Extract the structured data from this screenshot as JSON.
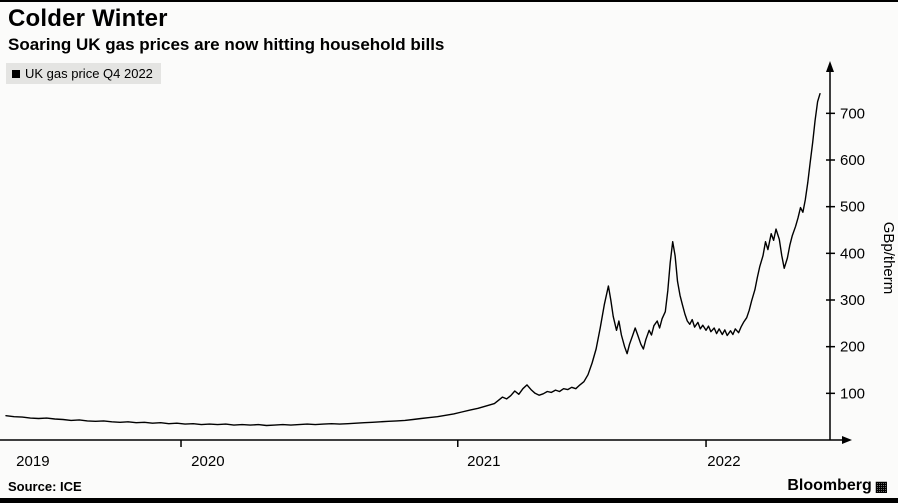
{
  "header": {
    "title": "Colder Winter",
    "subtitle": "Soaring UK gas prices are now hitting household bills"
  },
  "legend": {
    "label": "UK gas price Q4 2022",
    "swatch_color": "#000000"
  },
  "footer": {
    "source": "Source: ICE",
    "brand": "Bloomberg",
    "brand_icon": "▦"
  },
  "colors": {
    "background": "#fbfbfa",
    "axis": "#000000",
    "line": "#000000",
    "legend_bg": "#e4e4e2",
    "text": "#000000"
  },
  "chart_data": {
    "type": "line",
    "title": "Colder Winter",
    "subtitle": "Soaring UK gas prices are now hitting household bills",
    "legend_entries": [
      "UK gas price Q4 2022"
    ],
    "xlabel": "",
    "ylabel": "GBp/therm",
    "ylabel_side": "right",
    "ylim": [
      0,
      780
    ],
    "yticks": [
      100,
      200,
      300,
      400,
      500,
      600,
      700
    ],
    "grid": false,
    "legend_position": "top-left",
    "line_color": "#000000",
    "x_year_labels": [
      {
        "label": "2019",
        "x": 0.033
      },
      {
        "label": "2020",
        "x": 0.248
      },
      {
        "label": "2021",
        "x": 0.587
      },
      {
        "label": "2022",
        "x": 0.882
      }
    ],
    "x_axis_ticks": [
      0.215,
      0.555,
      0.86
    ],
    "points": [
      [
        0.0,
        52
      ],
      [
        0.01,
        50
      ],
      [
        0.02,
        49
      ],
      [
        0.03,
        47
      ],
      [
        0.04,
        46
      ],
      [
        0.05,
        47
      ],
      [
        0.06,
        45
      ],
      [
        0.07,
        44
      ],
      [
        0.08,
        42
      ],
      [
        0.09,
        43
      ],
      [
        0.1,
        41
      ],
      [
        0.11,
        40
      ],
      [
        0.12,
        41
      ],
      [
        0.13,
        39
      ],
      [
        0.14,
        38
      ],
      [
        0.15,
        39
      ],
      [
        0.16,
        37
      ],
      [
        0.17,
        38
      ],
      [
        0.18,
        36
      ],
      [
        0.19,
        37
      ],
      [
        0.2,
        35
      ],
      [
        0.21,
        36
      ],
      [
        0.22,
        34
      ],
      [
        0.23,
        35
      ],
      [
        0.24,
        33
      ],
      [
        0.25,
        34
      ],
      [
        0.26,
        33
      ],
      [
        0.27,
        34
      ],
      [
        0.28,
        32
      ],
      [
        0.29,
        33
      ],
      [
        0.3,
        32
      ],
      [
        0.31,
        33
      ],
      [
        0.32,
        31
      ],
      [
        0.33,
        32
      ],
      [
        0.34,
        33
      ],
      [
        0.35,
        32
      ],
      [
        0.36,
        33
      ],
      [
        0.37,
        34
      ],
      [
        0.38,
        33
      ],
      [
        0.39,
        34
      ],
      [
        0.4,
        35
      ],
      [
        0.41,
        34
      ],
      [
        0.42,
        35
      ],
      [
        0.43,
        36
      ],
      [
        0.44,
        37
      ],
      [
        0.45,
        38
      ],
      [
        0.46,
        39
      ],
      [
        0.47,
        40
      ],
      [
        0.48,
        41
      ],
      [
        0.49,
        42
      ],
      [
        0.5,
        44
      ],
      [
        0.51,
        46
      ],
      [
        0.52,
        48
      ],
      [
        0.53,
        50
      ],
      [
        0.54,
        53
      ],
      [
        0.55,
        56
      ],
      [
        0.56,
        60
      ],
      [
        0.57,
        64
      ],
      [
        0.58,
        68
      ],
      [
        0.59,
        73
      ],
      [
        0.6,
        78
      ],
      [
        0.605,
        85
      ],
      [
        0.61,
        92
      ],
      [
        0.615,
        88
      ],
      [
        0.62,
        95
      ],
      [
        0.625,
        105
      ],
      [
        0.63,
        98
      ],
      [
        0.635,
        110
      ],
      [
        0.64,
        118
      ],
      [
        0.645,
        108
      ],
      [
        0.65,
        100
      ],
      [
        0.655,
        96
      ],
      [
        0.66,
        99
      ],
      [
        0.665,
        104
      ],
      [
        0.67,
        102
      ],
      [
        0.675,
        107
      ],
      [
        0.68,
        104
      ],
      [
        0.685,
        110
      ],
      [
        0.69,
        108
      ],
      [
        0.695,
        113
      ],
      [
        0.7,
        110
      ],
      [
        0.705,
        118
      ],
      [
        0.71,
        125
      ],
      [
        0.715,
        140
      ],
      [
        0.72,
        165
      ],
      [
        0.725,
        195
      ],
      [
        0.73,
        240
      ],
      [
        0.735,
        290
      ],
      [
        0.74,
        330
      ],
      [
        0.743,
        300
      ],
      [
        0.746,
        265
      ],
      [
        0.75,
        235
      ],
      [
        0.753,
        255
      ],
      [
        0.756,
        225
      ],
      [
        0.76,
        200
      ],
      [
        0.763,
        185
      ],
      [
        0.766,
        205
      ],
      [
        0.77,
        225
      ],
      [
        0.773,
        240
      ],
      [
        0.776,
        225
      ],
      [
        0.78,
        205
      ],
      [
        0.783,
        195
      ],
      [
        0.786,
        215
      ],
      [
        0.79,
        235
      ],
      [
        0.793,
        225
      ],
      [
        0.796,
        245
      ],
      [
        0.8,
        255
      ],
      [
        0.803,
        240
      ],
      [
        0.806,
        260
      ],
      [
        0.81,
        275
      ],
      [
        0.813,
        320
      ],
      [
        0.816,
        380
      ],
      [
        0.819,
        425
      ],
      [
        0.822,
        395
      ],
      [
        0.825,
        340
      ],
      [
        0.828,
        310
      ],
      [
        0.831,
        290
      ],
      [
        0.834,
        270
      ],
      [
        0.837,
        255
      ],
      [
        0.84,
        248
      ],
      [
        0.843,
        258
      ],
      [
        0.846,
        242
      ],
      [
        0.85,
        252
      ],
      [
        0.853,
        238
      ],
      [
        0.856,
        246
      ],
      [
        0.86,
        235
      ],
      [
        0.863,
        244
      ],
      [
        0.866,
        232
      ],
      [
        0.87,
        240
      ],
      [
        0.873,
        228
      ],
      [
        0.876,
        238
      ],
      [
        0.88,
        226
      ],
      [
        0.883,
        236
      ],
      [
        0.886,
        224
      ],
      [
        0.89,
        234
      ],
      [
        0.893,
        226
      ],
      [
        0.896,
        238
      ],
      [
        0.9,
        230
      ],
      [
        0.903,
        242
      ],
      [
        0.906,
        252
      ],
      [
        0.91,
        262
      ],
      [
        0.913,
        278
      ],
      [
        0.916,
        298
      ],
      [
        0.92,
        322
      ],
      [
        0.923,
        348
      ],
      [
        0.926,
        372
      ],
      [
        0.93,
        395
      ],
      [
        0.933,
        425
      ],
      [
        0.936,
        408
      ],
      [
        0.94,
        442
      ],
      [
        0.943,
        428
      ],
      [
        0.946,
        452
      ],
      [
        0.95,
        430
      ],
      [
        0.953,
        396
      ],
      [
        0.956,
        368
      ],
      [
        0.96,
        390
      ],
      [
        0.963,
        418
      ],
      [
        0.966,
        438
      ],
      [
        0.97,
        458
      ],
      [
        0.973,
        476
      ],
      [
        0.976,
        498
      ],
      [
        0.979,
        488
      ],
      [
        0.982,
        515
      ],
      [
        0.985,
        552
      ],
      [
        0.988,
        595
      ],
      [
        0.991,
        638
      ],
      [
        0.994,
        685
      ],
      [
        0.997,
        725
      ],
      [
        1.0,
        742
      ]
    ]
  }
}
